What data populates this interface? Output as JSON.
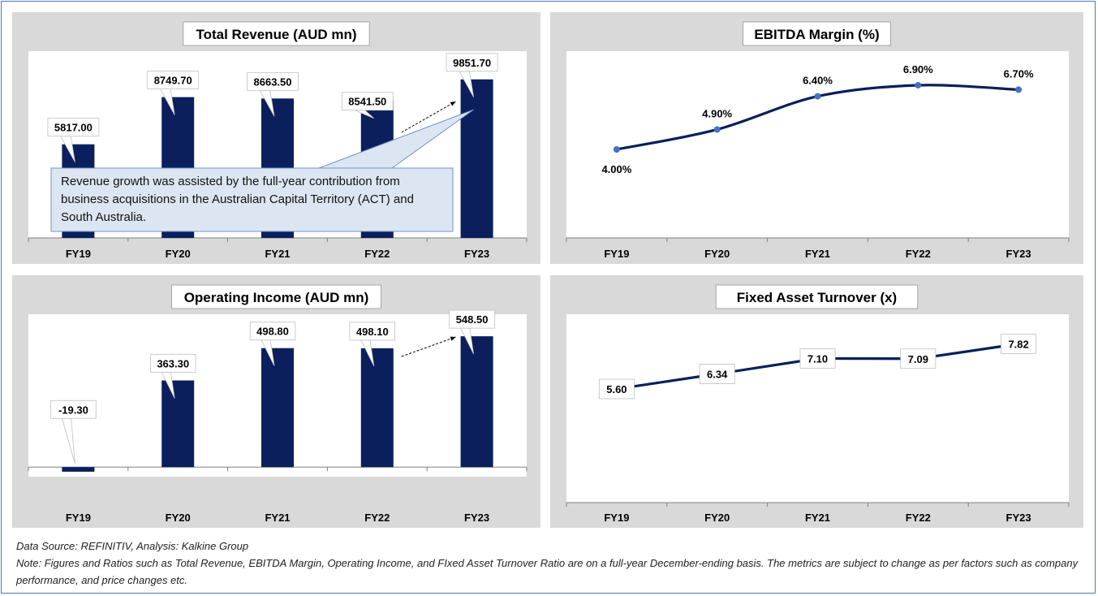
{
  "colors": {
    "bar": "#0a1f5c",
    "line": "#0a1f5c",
    "marker": "#4472c4",
    "panel_bg": "#d9d9d9",
    "plot_bg": "#ffffff",
    "callout_bg": "#dce6f2",
    "callout_border": "#6f94c9"
  },
  "chart_data": [
    {
      "type": "bar",
      "title": "Total Revenue (AUD mn)",
      "categories": [
        "FY19",
        "FY20",
        "FY21",
        "FY22",
        "FY23"
      ],
      "values": [
        5817.0,
        8749.7,
        8663.5,
        8541.5,
        9851.7
      ],
      "value_labels": [
        "5817.00",
        "8749.70",
        "8663.50",
        "8541.50",
        "9851.70"
      ],
      "ylim": [
        0,
        11000
      ],
      "annotation": "Revenue growth was assisted by the full-year contribution from business acquisitions in the Australian Capital Territory (ACT) and South Australia."
    },
    {
      "type": "line",
      "title": "EBITDA Margin (%)",
      "categories": [
        "FY19",
        "FY20",
        "FY21",
        "FY22",
        "FY23"
      ],
      "values": [
        4.0,
        4.9,
        6.4,
        6.9,
        6.7
      ],
      "value_labels": [
        "4.00%",
        "4.90%",
        "6.40%",
        "6.90%",
        "6.70%"
      ],
      "ylim": [
        0,
        8
      ],
      "smooth": true
    },
    {
      "type": "bar",
      "title": "Operating Income (AUD mn)",
      "categories": [
        "FY19",
        "FY20",
        "FY21",
        "FY22",
        "FY23"
      ],
      "values": [
        -19.3,
        363.3,
        498.8,
        498.1,
        548.5
      ],
      "value_labels": [
        "-19.30",
        "363.30",
        "498.80",
        "498.10",
        "548.50"
      ],
      "ylim": [
        -40,
        600
      ]
    },
    {
      "type": "line",
      "title": "Fixed Asset Turnover (x)",
      "categories": [
        "FY19",
        "FY20",
        "FY21",
        "FY22",
        "FY23"
      ],
      "values": [
        5.6,
        6.34,
        7.1,
        7.09,
        7.82
      ],
      "value_labels": [
        "5.60",
        "6.34",
        "7.10",
        "7.09",
        "7.82"
      ],
      "ylim": [
        0,
        8.8
      ]
    }
  ],
  "footer": {
    "source": "Data Source: REFINITIV, Analysis: Kalkine Group",
    "note": "Note: Figures and Ratios such as Total Revenue, EBITDA Margin, Operating Income, and FIxed Asset Turnover Ratio are on a full-year December-ending basis. The metrics are subject to change as per factors such as company performance, and price changes etc."
  }
}
